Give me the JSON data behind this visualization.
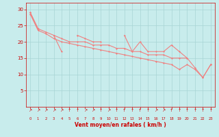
{
  "background_color": "#c8ecec",
  "grid_color": "#a8d4d4",
  "line_color": "#f08080",
  "tick_color": "#cc0000",
  "label_color": "#cc0000",
  "xlabel": "Vent moyen/en rafales ( km/h )",
  "ylim": [
    0,
    32
  ],
  "xlim": [
    -0.5,
    23.5
  ],
  "yticks": [
    5,
    10,
    15,
    20,
    25,
    30
  ],
  "xticks": [
    0,
    1,
    2,
    3,
    4,
    5,
    6,
    7,
    8,
    9,
    10,
    11,
    12,
    13,
    14,
    15,
    16,
    17,
    18,
    19,
    20,
    21,
    22,
    23
  ],
  "arrow_labels": [
    "↗",
    "↗",
    "↗",
    "↗",
    "↗",
    "↑",
    "↑",
    "↗",
    "↗",
    "↑",
    "↗",
    "↑",
    "↑",
    "↑",
    "↑",
    "↑",
    "↗",
    "↗",
    "↑",
    "↑",
    "↑",
    "↑",
    "↑",
    "↑"
  ],
  "upper_y": [
    29,
    24,
    23,
    22,
    21,
    20,
    20,
    20,
    19,
    19,
    19,
    18,
    18,
    17,
    17,
    16,
    16,
    16,
    15,
    15,
    15,
    12,
    9,
    13
  ],
  "lower_y": [
    28.5,
    23.5,
    22.5,
    21,
    20,
    19.5,
    19,
    18.5,
    18,
    17.5,
    17,
    16.5,
    16,
    15.5,
    15,
    14.5,
    14,
    13.5,
    13,
    11.5,
    13,
    11.5,
    9,
    13
  ],
  "jagged_y": [
    29,
    24,
    null,
    22,
    17,
    null,
    22,
    21,
    20,
    20,
    null,
    null,
    22,
    17,
    20,
    17,
    17,
    17,
    19,
    17,
    15,
    null,
    null,
    13
  ]
}
